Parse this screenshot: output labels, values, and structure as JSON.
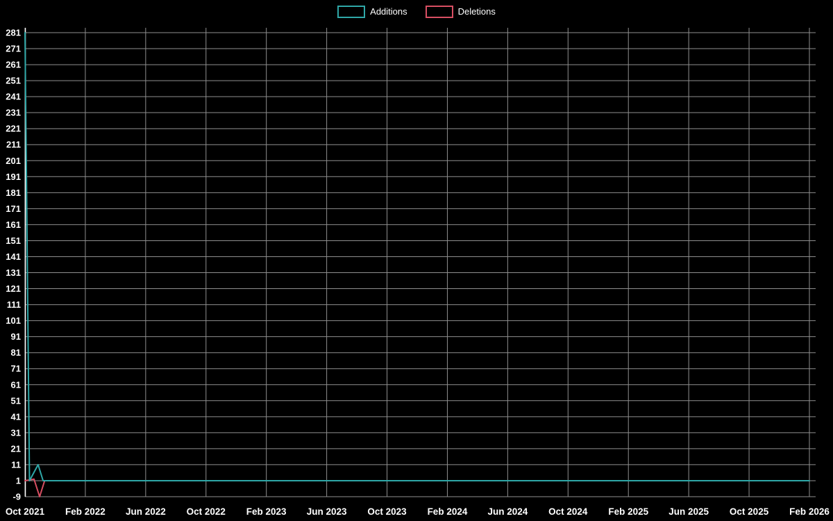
{
  "legend": {
    "items": [
      {
        "label": "Additions",
        "color": "#2fa8a8"
      },
      {
        "label": "Deletions",
        "color": "#d94f63"
      }
    ]
  },
  "chart_data": {
    "type": "line",
    "title": "",
    "xlabel": "",
    "ylabel": "",
    "background_color": "#000000",
    "grid": true,
    "grid_color": "#8f8f8f",
    "axis_color": "#ffffff",
    "text_color": "#ffffff",
    "legend_position": "top-center",
    "x_tick_labels": [
      "Oct 2021",
      "Feb 2022",
      "Jun 2022",
      "Oct 2022",
      "Feb 2023",
      "Jun 2023",
      "Oct 2023",
      "Feb 2024",
      "Jun 2024",
      "Oct 2024",
      "Feb 2025",
      "Jun 2025",
      "Oct 2025",
      "Feb 2026"
    ],
    "x_range_months": [
      0,
      52
    ],
    "y_ticks": [
      281,
      271,
      261,
      251,
      241,
      231,
      221,
      211,
      201,
      191,
      181,
      171,
      161,
      151,
      141,
      131,
      121,
      111,
      101,
      91,
      81,
      71,
      61,
      51,
      41,
      31,
      21,
      11,
      1,
      -9
    ],
    "ylim": [
      -9,
      281
    ],
    "series": [
      {
        "name": "Deletions",
        "color": "#d94f63",
        "points": [
          [
            0,
            1
          ],
          [
            0.6,
            2
          ],
          [
            0.97,
            -9
          ],
          [
            1.3,
            1
          ],
          [
            52,
            1
          ]
        ]
      },
      {
        "name": "Additions",
        "color": "#2fa8a8",
        "points": [
          [
            0,
            281
          ],
          [
            0.3,
            1
          ],
          [
            0.87,
            11
          ],
          [
            1.2,
            1
          ],
          [
            52,
            1
          ]
        ]
      }
    ]
  }
}
